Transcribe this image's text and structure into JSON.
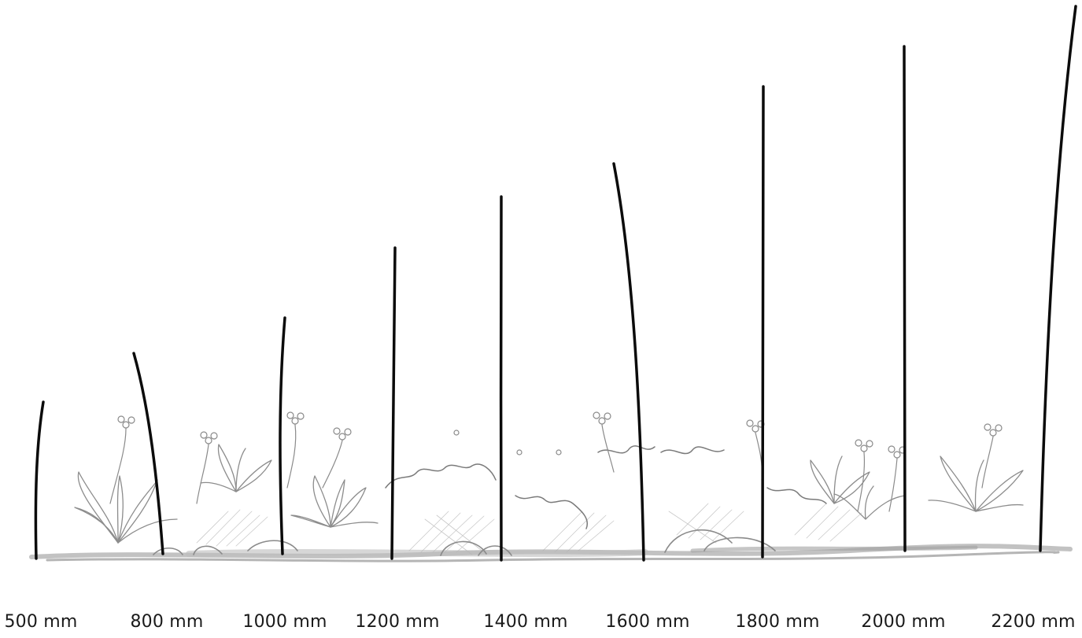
{
  "stakes": [
    {
      "label": "500 mm"
    },
    {
      "label": "800 mm"
    },
    {
      "label": "1000 mm"
    },
    {
      "label": "1200 mm"
    },
    {
      "label": "1400 mm"
    },
    {
      "label": "1600 mm"
    },
    {
      "label": "1800 mm"
    },
    {
      "label": "2000 mm"
    },
    {
      "label": "2200 mm"
    }
  ],
  "colors": {
    "stake": "#0b0b0b",
    "ground": "#9a9a9a",
    "sketch": "#8c8c8c",
    "label": "#1a1a1a"
  }
}
